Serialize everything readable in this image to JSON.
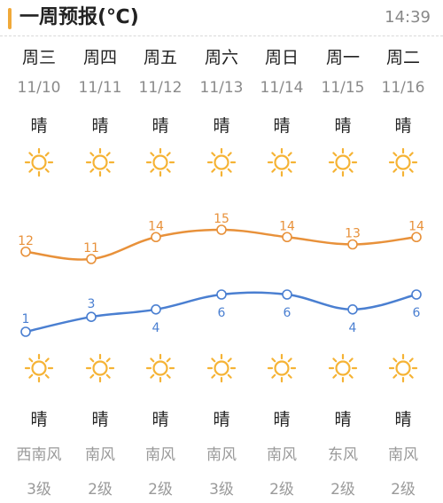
{
  "header": {
    "title": "一周预报(℃)",
    "time": "14:39"
  },
  "days": [
    {
      "weekday": "周三",
      "date": "11/10",
      "cond_day": "晴",
      "cond_night": "晴",
      "wind": "西南风",
      "level": "3级",
      "icon_day": "sun-icon",
      "icon_night": "sun-icon"
    },
    {
      "weekday": "周四",
      "date": "11/11",
      "cond_day": "晴",
      "cond_night": "晴",
      "wind": "南风",
      "level": "2级",
      "icon_day": "sun-icon",
      "icon_night": "sun-icon"
    },
    {
      "weekday": "周五",
      "date": "11/12",
      "cond_day": "晴",
      "cond_night": "晴",
      "wind": "南风",
      "level": "2级",
      "icon_day": "sun-icon",
      "icon_night": "sun-icon"
    },
    {
      "weekday": "周六",
      "date": "11/13",
      "cond_day": "晴",
      "cond_night": "晴",
      "wind": "南风",
      "level": "3级",
      "icon_day": "sun-icon",
      "icon_night": "sun-icon"
    },
    {
      "weekday": "周日",
      "date": "11/14",
      "cond_day": "晴",
      "cond_night": "晴",
      "wind": "南风",
      "level": "2级",
      "icon_day": "sun-icon",
      "icon_night": "sun-icon"
    },
    {
      "weekday": "周一",
      "date": "11/15",
      "cond_day": "晴",
      "cond_night": "晴",
      "wind": "东风",
      "level": "2级",
      "icon_day": "sun-icon",
      "icon_night": "sun-icon"
    },
    {
      "weekday": "周二",
      "date": "11/16",
      "cond_day": "晴",
      "cond_night": "晴",
      "wind": "南风",
      "level": "2级",
      "icon_day": "sun-icon",
      "icon_night": "sun-icon"
    }
  ],
  "colors": {
    "accent": "#f0a93a",
    "high_line": "#e8913a",
    "low_line": "#4a7fd1",
    "sun": "#f5b335"
  },
  "chart_data": {
    "type": "line",
    "categories": [
      "11/10",
      "11/11",
      "11/12",
      "11/13",
      "11/14",
      "11/15",
      "11/16"
    ],
    "series": [
      {
        "values": [
          12,
          11,
          14,
          15,
          14,
          13,
          14
        ]
      },
      {
        "values": [
          1,
          3,
          4,
          6,
          6,
          4,
          6
        ]
      }
    ],
    "grid": false,
    "legend": "none"
  }
}
